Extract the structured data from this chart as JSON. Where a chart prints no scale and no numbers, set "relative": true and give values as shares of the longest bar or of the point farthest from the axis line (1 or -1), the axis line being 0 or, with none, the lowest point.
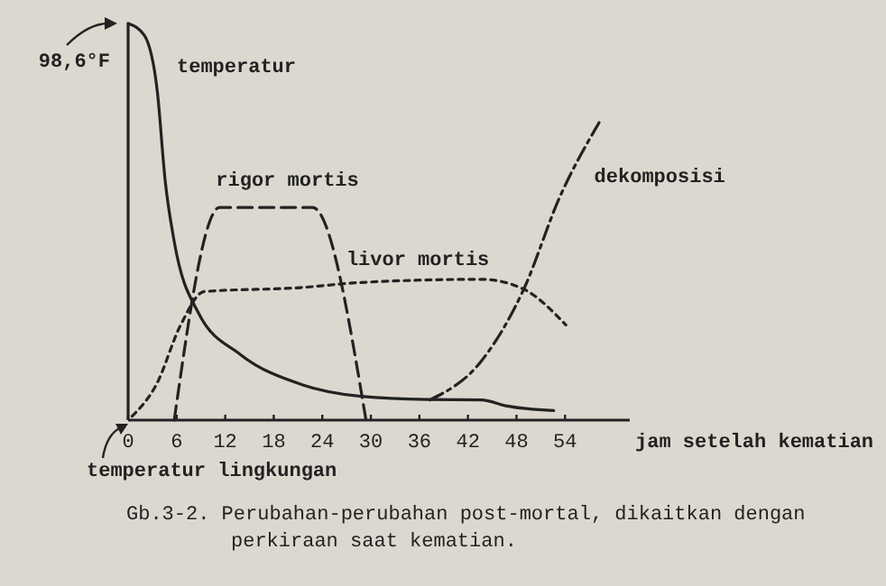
{
  "chart_data": {
    "type": "line",
    "relative": true,
    "xlabel": "jam setelah kematian",
    "xlim": [
      0,
      62
    ],
    "xticks": [
      0,
      6,
      12,
      18,
      24,
      30,
      36,
      42,
      48,
      54
    ],
    "tick_labels": "x",
    "grid": false,
    "marker": "none",
    "series": [
      {
        "name": "temperatur",
        "color": "#222222",
        "line_style": "solid",
        "x": [
          0,
          2,
          3.6,
          4.6,
          5.7,
          8.7,
          13.9,
          21.4,
          28.8,
          37,
          43.7,
          46.7,
          52.6
        ],
        "values": [
          1,
          0.97,
          0.83,
          0.6,
          0.45,
          0.27,
          0.165,
          0.09,
          0.06,
          0.052,
          0.051,
          0.036,
          0.024
        ]
      },
      {
        "name": "rigor mortis",
        "color": "#222222",
        "line_style": "dashed",
        "x": [
          5.7,
          11.3,
          22.8,
          29.4
        ],
        "values": [
          0,
          0.536,
          0.536,
          0
        ]
      },
      {
        "name": "livor mortis",
        "color": "#222222",
        "line_style": "dotted",
        "x": [
          0.5,
          3.5,
          6.5,
          9.4,
          21.3,
          28.8,
          43.7,
          48.9,
          54.1
        ],
        "values": [
          0.01,
          0.09,
          0.24,
          0.324,
          0.334,
          0.347,
          0.355,
          0.33,
          0.24
        ]
      },
      {
        "name": "dekomposisi",
        "color": "#222222",
        "line_style": "dashdot",
        "x": [
          37.3,
          43.7,
          48.9,
          53.3,
          58.5
        ],
        "values": [
          0.051,
          0.15,
          0.33,
          0.56,
          0.76
        ]
      }
    ],
    "annotations": [
      {
        "text": "98,6°F",
        "x": 0,
        "y": 1
      },
      {
        "text": "temperatur lingkungan",
        "x": 0,
        "y": 0
      },
      "Gb.3-2. Perubahan-perubahan post-mortal, dikaitkan dengan perkiraan saat kematian."
    ]
  }
}
